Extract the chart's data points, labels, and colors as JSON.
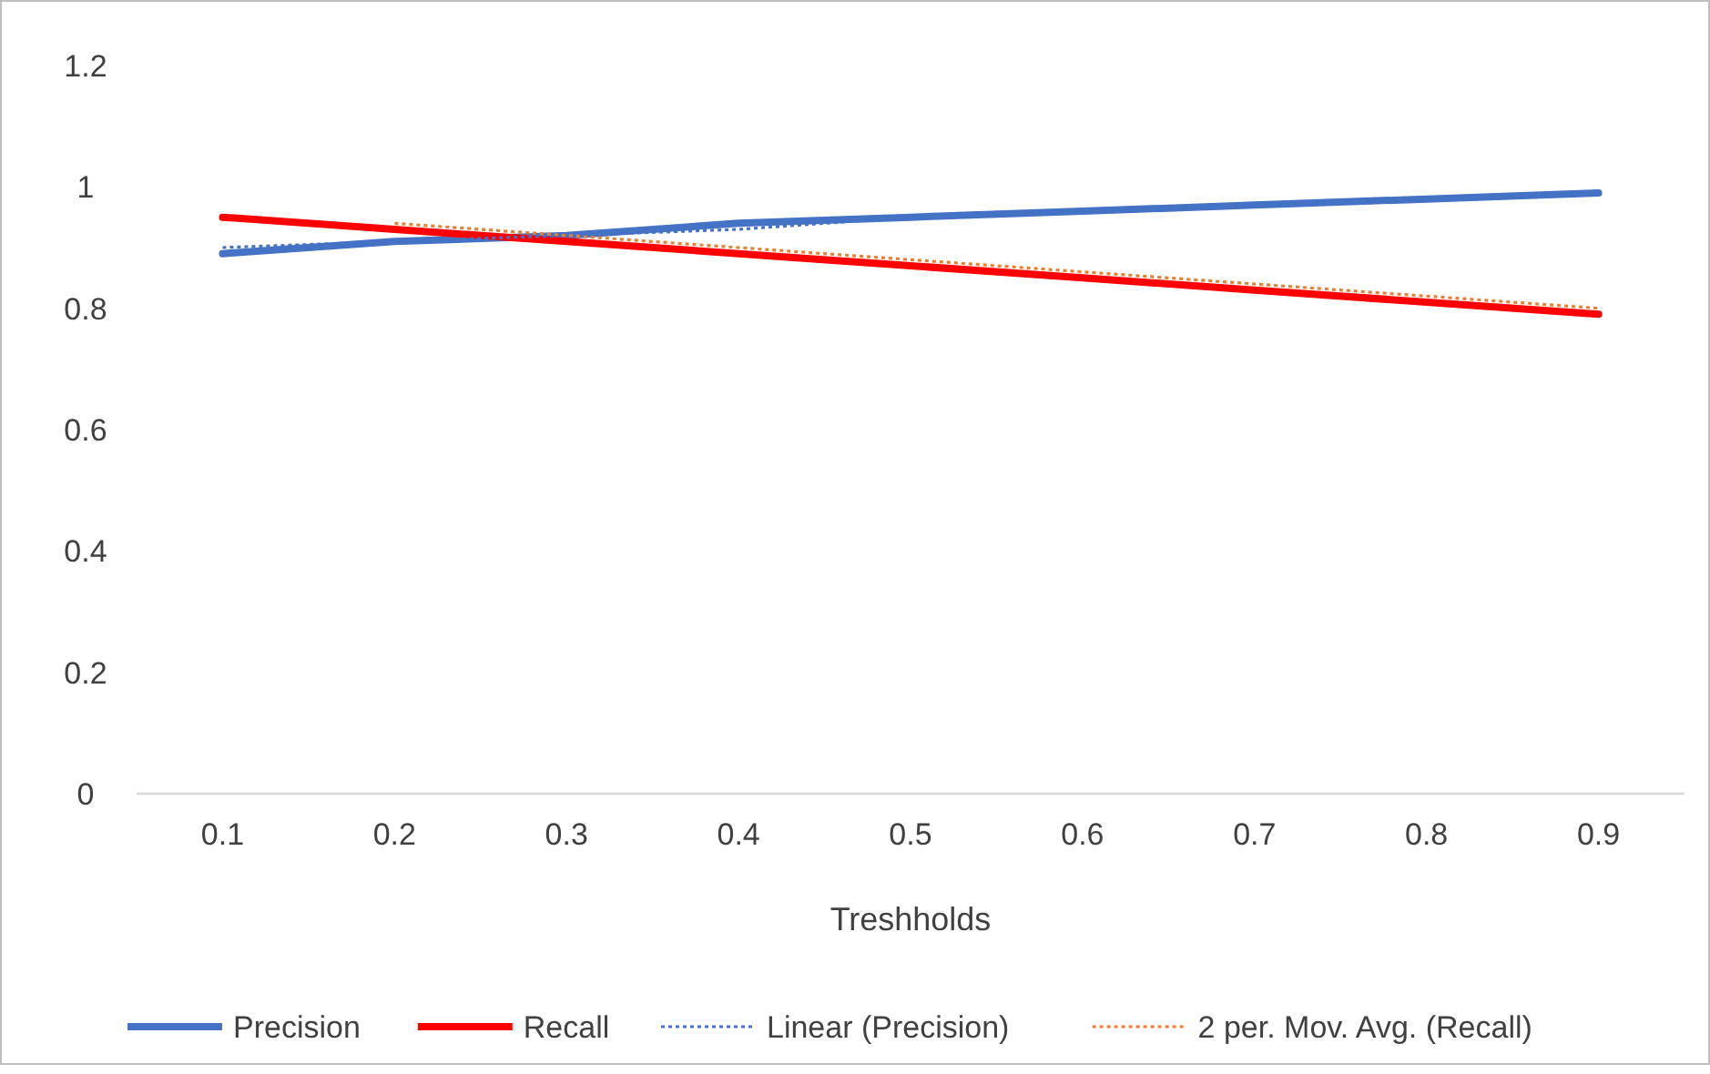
{
  "chart_data": {
    "type": "line",
    "xlabel": "Treshholds",
    "categories": [
      "0.1",
      "0.2",
      "0.3",
      "0.4",
      "0.5",
      "0.6",
      "0.7",
      "0.8",
      "0.9"
    ],
    "ylim": [
      0,
      1.2
    ],
    "yticks": [
      0,
      0.2,
      0.4,
      0.6,
      0.8,
      1,
      1.2
    ],
    "grid": false,
    "legend": "bottom",
    "marker": "none",
    "series": [
      {
        "name": "Precision",
        "color": "#4472c4",
        "line_style": "solid",
        "values": [
          0.89,
          0.91,
          0.92,
          0.94,
          0.95,
          0.96,
          0.97,
          0.98,
          0.99
        ]
      },
      {
        "name": "Recall",
        "color": "#ff0000",
        "line_style": "solid",
        "values": [
          0.95,
          0.93,
          0.91,
          0.89,
          0.87,
          0.85,
          0.83,
          0.81,
          0.79
        ]
      },
      {
        "name": "Linear (Precision)",
        "color": "#4472c4",
        "line_style": "dotted",
        "values": [
          0.9,
          0.91,
          0.92,
          0.93,
          0.95,
          0.96,
          0.97,
          0.98,
          0.99
        ]
      },
      {
        "name": "2 per. Mov. Avg. (Recall)",
        "color": "#ed7d31",
        "line_style": "dotted",
        "values": [
          null,
          0.94,
          0.92,
          0.9,
          0.88,
          0.86,
          0.84,
          0.82,
          0.8
        ]
      }
    ]
  }
}
